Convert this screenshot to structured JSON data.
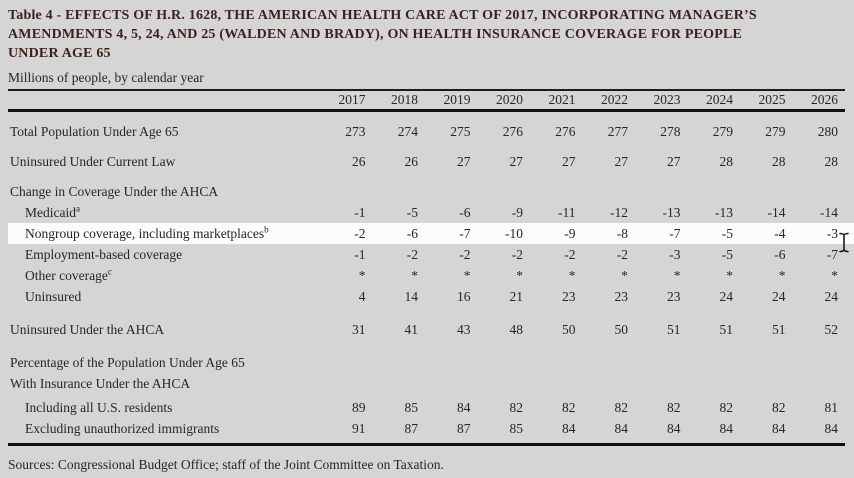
{
  "page": {
    "background_color": "#d5d5d5",
    "title_color": "#3b211c",
    "highlight_color": "#fcfcfc",
    "rule_color": "#101010"
  },
  "header": {
    "title_lines": [
      "Table 4 - EFFECTS OF H.R. 1628, THE AMERICAN HEALTH CARE ACT OF 2017, INCORPORATING MANAGER’S",
      "AMENDMENTS 4, 5, 24, AND 25 (WALDEN AND BRADY), ON HEALTH INSURANCE COVERAGE FOR PEOPLE",
      "UNDER AGE 65"
    ],
    "subtitle": "Millions of people, by calendar year"
  },
  "table": {
    "years": [
      "2017",
      "2018",
      "2019",
      "2020",
      "2021",
      "2022",
      "2023",
      "2024",
      "2025",
      "2026"
    ],
    "rows": [
      {
        "label": "Total Population Under Age 65",
        "indent": 0,
        "gap": "gap",
        "values": [
          "273",
          "274",
          "275",
          "276",
          "276",
          "277",
          "278",
          "279",
          "279",
          "280"
        ]
      },
      {
        "label": "Uninsured Under Current Law",
        "indent": 0,
        "gap": "gap",
        "values": [
          "26",
          "26",
          "27",
          "27",
          "27",
          "27",
          "27",
          "28",
          "28",
          "28"
        ]
      },
      {
        "label": "Change in Coverage Under the AHCA",
        "indent": 0,
        "gap": "gap",
        "values": []
      },
      {
        "label": "Medicaid",
        "sup": "a",
        "indent": 1,
        "values": [
          "-1",
          "-5",
          "-6",
          "-9",
          "-11",
          "-12",
          "-13",
          "-13",
          "-14",
          "-14"
        ]
      },
      {
        "label": "Nongroup coverage, including marketplaces",
        "sup": "b",
        "indent": 1,
        "highlight": true,
        "values": [
          "-2",
          "-6",
          "-7",
          "-10",
          "-9",
          "-8",
          "-7",
          "-5",
          "-4",
          "-3"
        ]
      },
      {
        "label": "Employment-based coverage",
        "indent": 1,
        "values": [
          "-1",
          "-2",
          "-2",
          "-2",
          "-2",
          "-2",
          "-3",
          "-5",
          "-6",
          "-7"
        ]
      },
      {
        "label": "Other coverage",
        "sup": "c",
        "indent": 1,
        "values": [
          "*",
          "*",
          "*",
          "*",
          "*",
          "*",
          "*",
          "*",
          "*",
          "*"
        ]
      },
      {
        "label": "Uninsured",
        "indent": 1,
        "values": [
          "4",
          "14",
          "16",
          "21",
          "23",
          "23",
          "23",
          "24",
          "24",
          "24"
        ]
      },
      {
        "label": "Uninsured Under the AHCA",
        "indent": 0,
        "gap": "biggap",
        "values": [
          "31",
          "41",
          "43",
          "48",
          "50",
          "50",
          "51",
          "51",
          "51",
          "52"
        ]
      },
      {
        "label": "Percentage of the Population Under Age 65",
        "indent": 0,
        "gap": "biggap",
        "values": []
      },
      {
        "label": "With Insurance Under the AHCA",
        "indent": 0,
        "values": []
      },
      {
        "label": "Including all U.S. residents",
        "indent": 1,
        "gap": "smallgap",
        "values": [
          "89",
          "85",
          "84",
          "82",
          "82",
          "82",
          "82",
          "82",
          "82",
          "81"
        ]
      },
      {
        "label": "Excluding unauthorized immigrants",
        "indent": 1,
        "values": [
          "91",
          "87",
          "87",
          "85",
          "84",
          "84",
          "84",
          "84",
          "84",
          "84"
        ]
      }
    ]
  },
  "footer": {
    "sources": "Sources: Congressional Budget Office; staff of the Joint Committee on Taxation."
  },
  "cursor": {
    "icon": "text-ibeam-cursor"
  }
}
